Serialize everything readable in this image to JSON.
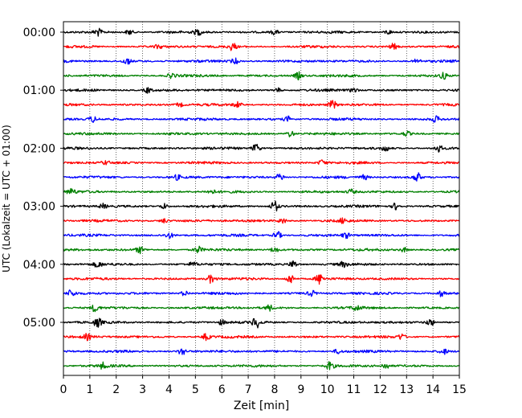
{
  "chart_data": {
    "type": "line",
    "title": "",
    "xlabel": "Zeit  [min]",
    "ylabel": "UTC (Lokalzeit = UTC + 01:00)",
    "xlim": [
      0,
      15
    ],
    "x_ticks": [
      "0",
      "1",
      "2",
      "3",
      "4",
      "5",
      "6",
      "7",
      "8",
      "9",
      "10",
      "11",
      "12",
      "13",
      "14",
      "15"
    ],
    "y_ticks": [
      "00:00",
      "01:00",
      "02:00",
      "03:00",
      "04:00",
      "05:00"
    ],
    "grid": "vertical dotted",
    "trace_minutes": 15,
    "trace_colors": [
      "#000000",
      "#ff0000",
      "#0000ff",
      "#008000"
    ],
    "trace_start_times": [
      "00:00",
      "00:15",
      "00:30",
      "00:45",
      "01:00",
      "01:15",
      "01:30",
      "01:45",
      "02:00",
      "02:15",
      "02:30",
      "02:45",
      "03:00",
      "03:15",
      "03:30",
      "03:45",
      "04:00",
      "04:15",
      "04:30",
      "04:45",
      "05:00",
      "05:15",
      "05:30",
      "05:45"
    ],
    "bursts": [
      [
        [
          1.3,
          0.8
        ],
        [
          2.5,
          0.6
        ],
        [
          5.1,
          0.6
        ],
        [
          8.0,
          0.5
        ],
        [
          12.3,
          0.5
        ]
      ],
      [
        [
          6.4,
          0.8
        ],
        [
          12.5,
          0.6
        ],
        [
          3.6,
          0.4
        ]
      ],
      [
        [
          2.4,
          0.7
        ],
        [
          6.5,
          0.6
        ],
        [
          13.4,
          0.5
        ]
      ],
      [
        [
          4.1,
          0.5
        ],
        [
          8.9,
          0.8
        ],
        [
          14.4,
          0.7
        ]
      ],
      [
        [
          3.2,
          0.6
        ],
        [
          8.1,
          0.5
        ],
        [
          11.0,
          0.5
        ]
      ],
      [
        [
          6.6,
          0.6
        ],
        [
          10.2,
          0.9
        ],
        [
          4.4,
          0.4
        ]
      ],
      [
        [
          1.1,
          0.6
        ],
        [
          8.5,
          0.6
        ],
        [
          14.1,
          0.6
        ]
      ],
      [
        [
          8.6,
          0.7
        ],
        [
          13.0,
          0.5
        ]
      ],
      [
        [
          7.3,
          1.0
        ],
        [
          12.2,
          0.6
        ],
        [
          14.2,
          0.8
        ]
      ],
      [
        [
          1.6,
          0.4
        ],
        [
          9.8,
          0.6
        ]
      ],
      [
        [
          4.3,
          0.5
        ],
        [
          8.2,
          0.8
        ],
        [
          13.4,
          1.0
        ],
        [
          11.4,
          0.5
        ]
      ],
      [
        [
          0.3,
          0.6
        ],
        [
          5.6,
          0.4
        ],
        [
          10.9,
          0.5
        ]
      ],
      [
        [
          1.5,
          0.5
        ],
        [
          3.8,
          0.6
        ],
        [
          8.0,
          1.2
        ],
        [
          12.6,
          0.8
        ]
      ],
      [
        [
          3.8,
          0.5
        ],
        [
          8.3,
          0.6
        ],
        [
          10.6,
          0.5
        ]
      ],
      [
        [
          4.0,
          0.6
        ],
        [
          8.1,
          0.9
        ],
        [
          10.7,
          0.6
        ]
      ],
      [
        [
          2.9,
          0.7
        ],
        [
          5.1,
          0.7
        ],
        [
          8.0,
          0.6
        ],
        [
          12.9,
          0.5
        ]
      ],
      [
        [
          1.3,
          0.6
        ],
        [
          8.7,
          0.9
        ],
        [
          4.9,
          0.4
        ],
        [
          10.6,
          0.5
        ]
      ],
      [
        [
          5.6,
          0.9
        ],
        [
          8.6,
          1.1
        ],
        [
          9.7,
          1.1
        ]
      ],
      [
        [
          0.3,
          0.7
        ],
        [
          4.6,
          0.6
        ],
        [
          9.4,
          0.6
        ],
        [
          14.3,
          0.6
        ]
      ],
      [
        [
          1.2,
          0.8
        ],
        [
          7.8,
          0.6
        ],
        [
          11.1,
          0.6
        ]
      ],
      [
        [
          1.3,
          0.9
        ],
        [
          7.3,
          1.2
        ],
        [
          13.9,
          0.8
        ],
        [
          6.0,
          0.5
        ]
      ],
      [
        [
          0.9,
          0.6
        ],
        [
          5.4,
          0.7
        ],
        [
          12.8,
          0.6
        ]
      ],
      [
        [
          4.5,
          0.9
        ],
        [
          10.4,
          0.5
        ],
        [
          14.4,
          0.6
        ]
      ],
      [
        [
          1.5,
          0.6
        ],
        [
          10.1,
          0.9
        ],
        [
          12.2,
          0.6
        ]
      ]
    ]
  }
}
